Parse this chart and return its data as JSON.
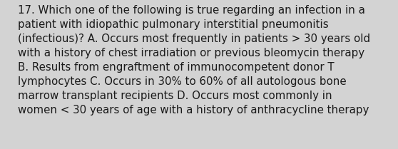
{
  "lines": [
    "17. Which one of the following is true regarding an infection in a",
    "patient with idiopathic pulmonary interstitial pneumonitis",
    "(infectious)? A. Occurs most frequently in patients > 30 years old",
    "with a history of chest irradiation or previous bleomycin therapy",
    "B. Results from engraftment of immunocompetent donor T",
    "lymphocytes C. Occurs in 30% to 60% of all autologous bone",
    "marrow transplant recipients D. Occurs most commonly in",
    "women < 30 years of age with a history of anthracycline therapy"
  ],
  "background_color": "#d3d3d3",
  "text_color": "#1a1a1a",
  "font_size": 10.8,
  "fig_width": 5.58,
  "fig_height": 2.09,
  "dpi": 100
}
